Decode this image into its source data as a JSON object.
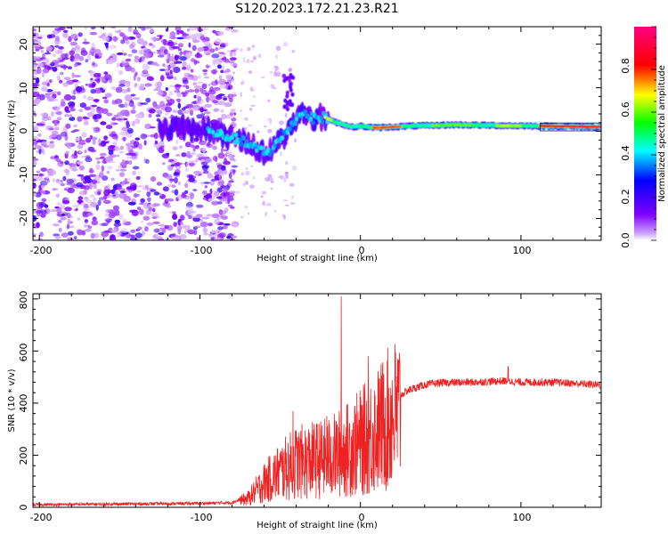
{
  "figure": {
    "title": "S120.2023.172.21.23.R21"
  },
  "chart_data": [
    {
      "type": "heatmap",
      "title": "S120.2023.172.21.23.R21",
      "xlabel": "Height of straight line (km)",
      "ylabel": "Frequency (Hz)",
      "xlim": [
        -204,
        150
      ],
      "ylim": [
        -25,
        24
      ],
      "x_ticks": [
        "-200",
        "-100",
        "0",
        "100"
      ],
      "y_ticks": [
        "20",
        "10",
        "0",
        "-10",
        "-20"
      ],
      "colorbar": {
        "label": "Normalized spectral amplitude",
        "range": [
          0,
          1
        ],
        "ticks": [
          "0.0",
          "0.2",
          "0.4",
          "0.6",
          "0.8"
        ],
        "colormap": [
          "#ffffff",
          "#8000ff",
          "#0000ff",
          "#00ffff",
          "#00ff00",
          "#ffff00",
          "#ff0000",
          "#ff0080"
        ]
      },
      "features": {
        "noise_region_x": [
          -204,
          -78
        ],
        "tracked_line_x": [
          -125,
          150
        ],
        "tracked_frequency_hz": [
          [
            -125,
            0.5
          ],
          [
            -110,
            1.0
          ],
          [
            -95,
            0.0
          ],
          [
            -85,
            -1.0
          ],
          [
            -75,
            -2.0
          ],
          [
            -65,
            -4.0
          ],
          [
            -58,
            -5.0
          ],
          [
            -50,
            -2.0
          ],
          [
            -42,
            2.0
          ],
          [
            -36,
            4.5
          ],
          [
            -30,
            3.0
          ],
          [
            -22,
            3.2
          ],
          [
            -15,
            2.0
          ],
          [
            -5,
            1.0
          ],
          [
            0,
            1.2
          ],
          [
            10,
            0.8
          ],
          [
            30,
            1.2
          ],
          [
            60,
            1.5
          ],
          [
            90,
            1.3
          ],
          [
            112,
            1.2
          ],
          [
            150,
            1.0
          ]
        ]
      }
    },
    {
      "type": "line",
      "xlabel": "Height of straight line (km)",
      "ylabel": "SNR (10 * v/v)",
      "xlim": [
        -204,
        150
      ],
      "ylim": [
        0,
        820
      ],
      "x_ticks": [
        "-200",
        "-100",
        "0",
        "100"
      ],
      "y_ticks": [
        "800",
        "600",
        "400",
        "200",
        "0"
      ],
      "color": "#ee2222",
      "envelope": [
        [
          -204,
          10
        ],
        [
          -100,
          15
        ],
        [
          -80,
          18
        ],
        [
          -70,
          40
        ],
        [
          -60,
          110
        ],
        [
          -50,
          160
        ],
        [
          -40,
          200
        ],
        [
          -30,
          210
        ],
        [
          -20,
          220
        ],
        [
          -10,
          250
        ],
        [
          0,
          290
        ],
        [
          10,
          340
        ],
        [
          20,
          410
        ],
        [
          30,
          450
        ],
        [
          40,
          470
        ],
        [
          50,
          478
        ],
        [
          70,
          480
        ],
        [
          90,
          485
        ],
        [
          100,
          480
        ],
        [
          120,
          480
        ],
        [
          150,
          470
        ]
      ],
      "spikes": [
        {
          "x": -12,
          "y": 810
        },
        {
          "x": -21,
          "y": 350
        },
        {
          "x": -42,
          "y": 370
        },
        {
          "x": 5,
          "y": 580
        },
        {
          "x": 92,
          "y": 540
        }
      ]
    }
  ]
}
